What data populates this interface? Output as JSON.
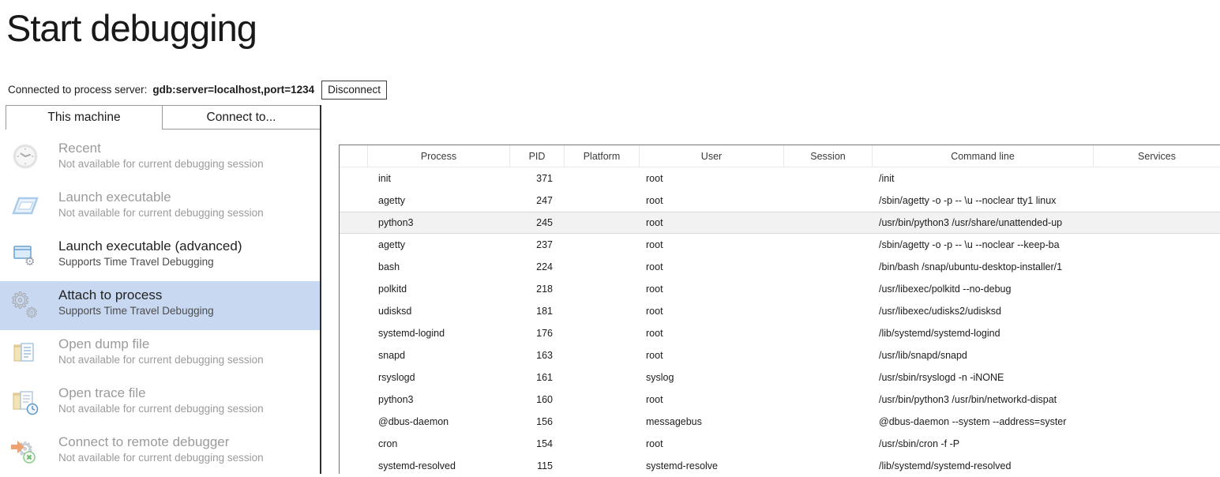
{
  "page": {
    "title": "Start debugging"
  },
  "connection": {
    "label": "Connected to process server:",
    "value": "gdb:server=localhost,port=1234",
    "disconnect_label": "Disconnect"
  },
  "tabs": [
    {
      "label": "This machine",
      "active": true
    },
    {
      "label": "Connect to...",
      "active": false
    }
  ],
  "sidebar": {
    "items": [
      {
        "label": "Recent",
        "subtitle": "Not available for current debugging session",
        "state": "disabled",
        "icon": "clock-icon"
      },
      {
        "label": "Launch executable",
        "subtitle": "Not available for current debugging session",
        "state": "disabled",
        "icon": "window-icon"
      },
      {
        "label": "Launch executable (advanced)",
        "subtitle": "Supports Time Travel Debugging",
        "state": "enabled",
        "icon": "window-gear-icon"
      },
      {
        "label": "Attach to process",
        "subtitle": "Supports Time Travel Debugging",
        "state": "selected",
        "icon": "gears-icon"
      },
      {
        "label": "Open dump file",
        "subtitle": "Not available for current debugging session",
        "state": "disabled",
        "icon": "folder-document-icon"
      },
      {
        "label": "Open trace file",
        "subtitle": "Not available for current debugging session",
        "state": "disabled",
        "icon": "folder-trace-icon"
      },
      {
        "label": "Connect to remote debugger",
        "subtitle": "Not available for current debugging session",
        "state": "disabled",
        "icon": "remote-debugger-icon"
      }
    ]
  },
  "process_table": {
    "columns": [
      "",
      "Process",
      "PID",
      "Platform",
      "User",
      "Session",
      "Command line",
      "Services"
    ],
    "rows": [
      {
        "process": "init",
        "pid": "371",
        "platform": "",
        "user": "root",
        "session": "",
        "command_line": "/init",
        "services": "",
        "highlighted": false
      },
      {
        "process": "agetty",
        "pid": "247",
        "platform": "",
        "user": "root",
        "session": "",
        "command_line": "/sbin/agetty -o -p -- \\u --noclear tty1 linux",
        "services": "",
        "highlighted": false
      },
      {
        "process": "python3",
        "pid": "245",
        "platform": "",
        "user": "root",
        "session": "",
        "command_line": "/usr/bin/python3 /usr/share/unattended-up",
        "services": "",
        "highlighted": true
      },
      {
        "process": "agetty",
        "pid": "237",
        "platform": "",
        "user": "root",
        "session": "",
        "command_line": "/sbin/agetty -o -p -- \\u --noclear --keep-ba",
        "services": "",
        "highlighted": false
      },
      {
        "process": "bash",
        "pid": "224",
        "platform": "",
        "user": "root",
        "session": "",
        "command_line": "/bin/bash /snap/ubuntu-desktop-installer/1",
        "services": "",
        "highlighted": false
      },
      {
        "process": "polkitd",
        "pid": "218",
        "platform": "",
        "user": "root",
        "session": "",
        "command_line": "/usr/libexec/polkitd --no-debug",
        "services": "",
        "highlighted": false
      },
      {
        "process": "udisksd",
        "pid": "181",
        "platform": "",
        "user": "root",
        "session": "",
        "command_line": "/usr/libexec/udisks2/udisksd",
        "services": "",
        "highlighted": false
      },
      {
        "process": "systemd-logind",
        "pid": "176",
        "platform": "",
        "user": "root",
        "session": "",
        "command_line": "/lib/systemd/systemd-logind",
        "services": "",
        "highlighted": false
      },
      {
        "process": "snapd",
        "pid": "163",
        "platform": "",
        "user": "root",
        "session": "",
        "command_line": "/usr/lib/snapd/snapd",
        "services": "",
        "highlighted": false
      },
      {
        "process": "rsyslogd",
        "pid": "161",
        "platform": "",
        "user": "syslog",
        "session": "",
        "command_line": "/usr/sbin/rsyslogd -n -iNONE",
        "services": "",
        "highlighted": false
      },
      {
        "process": "python3",
        "pid": "160",
        "platform": "",
        "user": "root",
        "session": "",
        "command_line": "/usr/bin/python3 /usr/bin/networkd-dispat",
        "services": "",
        "highlighted": false
      },
      {
        "process": "@dbus-daemon",
        "pid": "156",
        "platform": "",
        "user": "messagebus",
        "session": "",
        "command_line": "@dbus-daemon --system --address=syster",
        "services": "",
        "highlighted": false
      },
      {
        "process": "cron",
        "pid": "154",
        "platform": "",
        "user": "root",
        "session": "",
        "command_line": "/usr/sbin/cron -f -P",
        "services": "",
        "highlighted": false
      },
      {
        "process": "systemd-resolved",
        "pid": "115",
        "platform": "",
        "user": "systemd-resolve",
        "session": "",
        "command_line": "/lib/systemd/systemd-resolved",
        "services": "",
        "highlighted": false
      }
    ]
  },
  "colors": {
    "selected_item_bg": "#c7d8f0",
    "highlighted_row_bg": "#f2f2f2",
    "table_border": "#747474",
    "divider_line": "#2d2d2d",
    "disabled_text": "#9b9b9b"
  }
}
